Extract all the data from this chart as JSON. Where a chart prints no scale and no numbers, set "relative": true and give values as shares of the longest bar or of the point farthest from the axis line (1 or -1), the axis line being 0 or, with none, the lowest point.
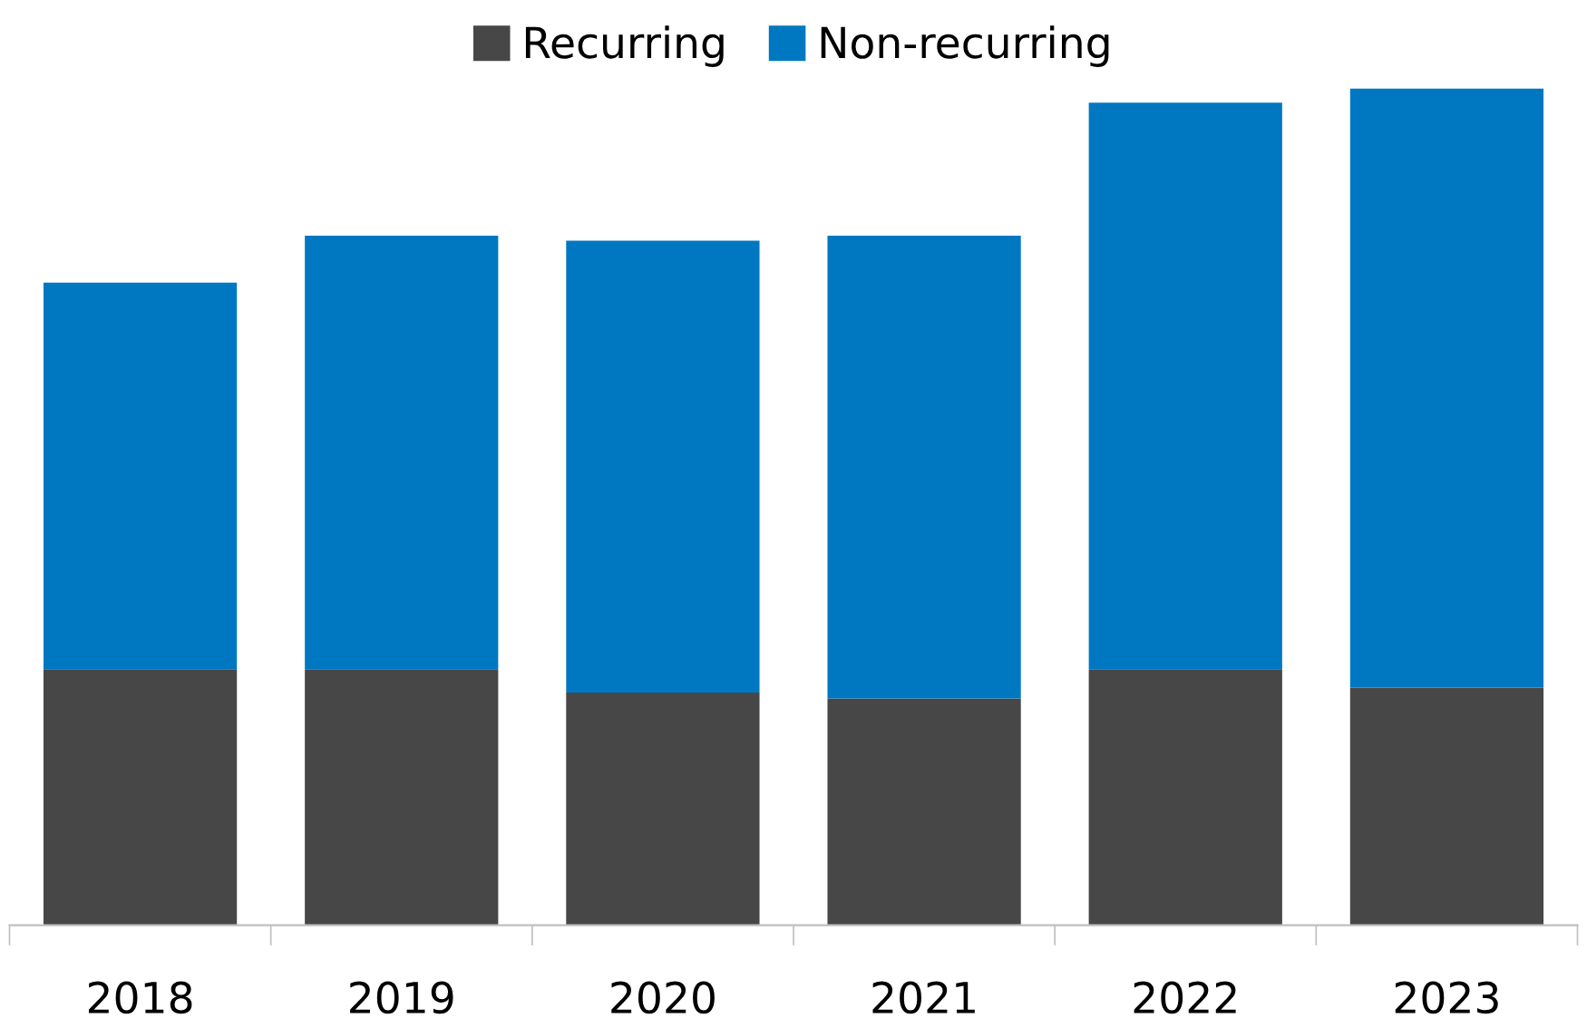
{
  "chart_data": {
    "type": "bar",
    "stacked": true,
    "relative": true,
    "legend": "top",
    "grid": false,
    "categories": [
      "2018",
      "2019",
      "2020",
      "2021",
      "2022",
      "2023"
    ],
    "series": [
      {
        "name": "Recurring",
        "color": "#474747",
        "values": [
          0.306,
          0.306,
          0.278,
          0.271,
          0.306,
          0.284
        ]
      },
      {
        "name": "Non-recurring",
        "color": "#0078c1",
        "values": [
          0.462,
          0.518,
          0.54,
          0.553,
          0.677,
          0.716
        ]
      }
    ]
  }
}
